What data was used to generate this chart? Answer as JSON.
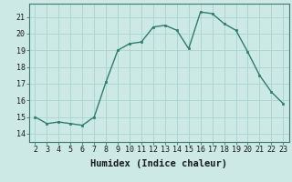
{
  "x": [
    2,
    3,
    4,
    5,
    6,
    7,
    8,
    9,
    10,
    11,
    12,
    13,
    14,
    15,
    16,
    17,
    18,
    19,
    20,
    21,
    22,
    23
  ],
  "y": [
    15.0,
    14.6,
    14.7,
    14.6,
    14.5,
    15.0,
    17.1,
    19.0,
    19.4,
    19.5,
    20.4,
    20.5,
    20.2,
    19.1,
    21.3,
    21.2,
    20.6,
    20.2,
    18.9,
    17.5,
    16.5,
    15.8
  ],
  "line_color": "#2e7d6e",
  "marker_color": "#2e7d6e",
  "bg_color": "#cce9e5",
  "grid_color": "#aad4cf",
  "xlabel": "Humidex (Indice chaleur)",
  "ylim": [
    13.5,
    21.8
  ],
  "xlim": [
    1.5,
    23.5
  ],
  "yticks": [
    14,
    15,
    16,
    17,
    18,
    19,
    20,
    21
  ],
  "xticks": [
    2,
    3,
    4,
    5,
    6,
    7,
    8,
    9,
    10,
    11,
    12,
    13,
    14,
    15,
    16,
    17,
    18,
    19,
    20,
    21,
    22,
    23
  ],
  "xlabel_fontsize": 7.5,
  "tick_fontsize": 6,
  "line_width": 1.0,
  "marker_size": 2.0
}
